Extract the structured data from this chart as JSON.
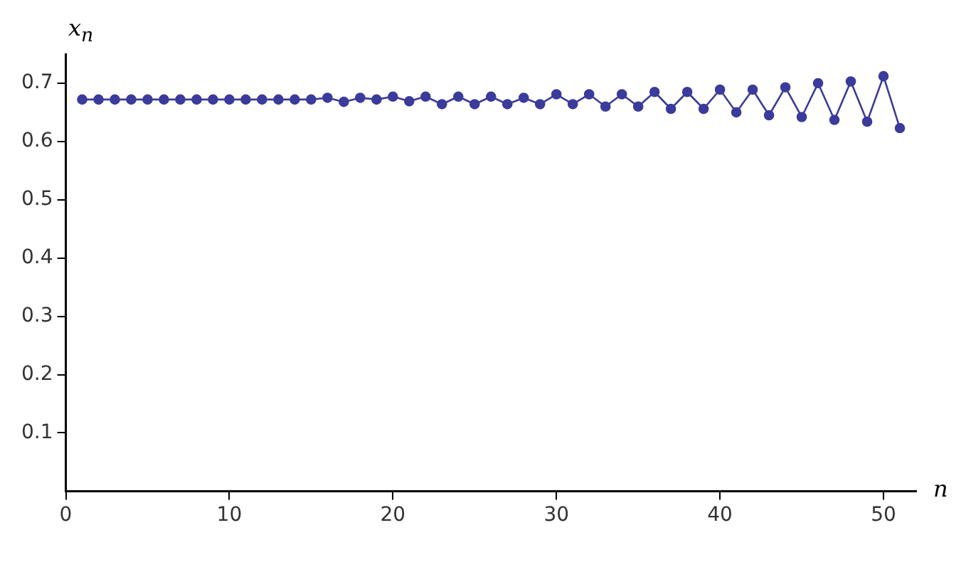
{
  "chart_data": {
    "type": "line",
    "xlabel": "n",
    "ylabel": "x$_{n}$",
    "x": [
      1,
      2,
      3,
      4,
      5,
      6,
      7,
      8,
      9,
      10,
      11,
      12,
      13,
      14,
      15,
      16,
      17,
      18,
      19,
      20,
      21,
      22,
      23,
      24,
      25,
      26,
      27,
      28,
      29,
      30,
      31,
      32,
      33,
      34,
      35,
      36,
      37,
      38,
      39,
      40,
      41,
      42,
      43,
      44,
      45,
      46,
      47,
      48,
      49,
      50,
      51
    ],
    "series": [
      {
        "color": "#3b3b9c",
        "values": [
          0.672,
          0.672,
          0.672,
          0.672,
          0.672,
          0.672,
          0.672,
          0.672,
          0.672,
          0.672,
          0.672,
          0.672,
          0.672,
          0.672,
          0.672,
          0.675,
          0.668,
          0.675,
          0.672,
          0.677,
          0.669,
          0.677,
          0.664,
          0.677,
          0.664,
          0.677,
          0.664,
          0.675,
          0.664,
          0.681,
          0.664,
          0.681,
          0.66,
          0.681,
          0.66,
          0.685,
          0.656,
          0.685,
          0.656,
          0.689,
          0.65,
          0.689,
          0.645,
          0.693,
          0.642,
          0.7,
          0.637,
          0.703,
          0.634,
          0.712,
          0.623
        ]
      }
    ],
    "xlim": [
      0,
      52
    ],
    "ylim": [
      0,
      0.75
    ],
    "xticks": [
      0,
      10,
      20,
      30,
      40,
      50
    ],
    "yticks": [
      0.1,
      0.2,
      0.3,
      0.4,
      0.5,
      0.6,
      0.7
    ],
    "grid": false,
    "legend": false,
    "marker": "circle",
    "line_style": "solid"
  }
}
